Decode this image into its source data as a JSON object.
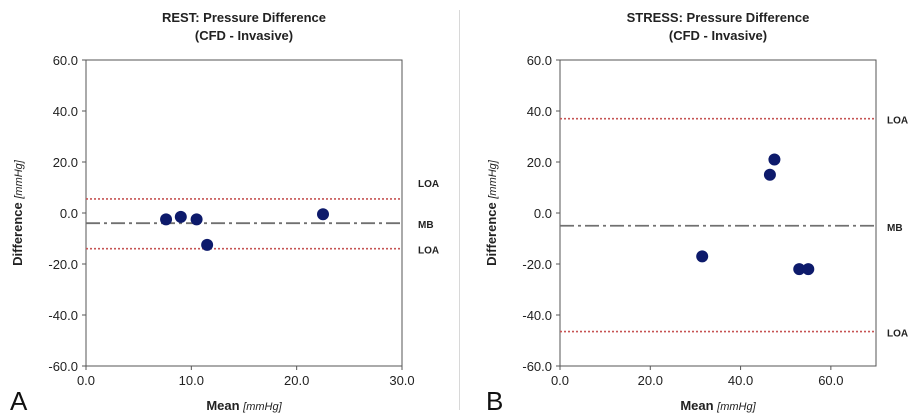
{
  "chart_data": [
    {
      "type": "scatter",
      "panel_letter": "A",
      "title_lines": [
        "REST: Pressure Difference",
        "(CFD - Invasive)"
      ],
      "xlabel": "Mean",
      "xlabel_unit": "[mmHg]",
      "ylabel": "Difference",
      "ylabel_unit": "[mmHg]",
      "xlim": [
        0,
        30
      ],
      "ylim": [
        -60,
        60
      ],
      "xticks": [
        0,
        10,
        20,
        30
      ],
      "xtick_labels": [
        "0.0",
        "10.0",
        "20.0",
        "30.0"
      ],
      "yticks": [
        60,
        40,
        20,
        0,
        -20,
        -40,
        -60
      ],
      "ytick_labels": [
        "60.0",
        "40.0",
        "20.0",
        "0.0",
        "-20.0",
        "-40.0",
        "-60.0"
      ],
      "points": [
        {
          "x": 7.6,
          "y": -2.5
        },
        {
          "x": 9.0,
          "y": -1.5
        },
        {
          "x": 10.5,
          "y": -2.5
        },
        {
          "x": 11.5,
          "y": -12.5
        },
        {
          "x": 22.5,
          "y": -0.5
        }
      ],
      "lines": [
        {
          "label": "LOA",
          "y": 5.5,
          "style": "dotted"
        },
        {
          "label": "MB",
          "y": -4.0,
          "style": "dashdot"
        },
        {
          "label": "LOA",
          "y": -14.0,
          "style": "dotted"
        }
      ],
      "colors": {
        "points": "#0d1a6b",
        "loa": "#c65454",
        "mb": "#707070"
      }
    },
    {
      "type": "scatter",
      "panel_letter": "B",
      "title_lines": [
        "STRESS: Pressure Difference",
        "(CFD - Invasive)"
      ],
      "xlabel": "Mean",
      "xlabel_unit": "[mmHg]",
      "ylabel": "Difference",
      "ylabel_unit": "[mmHg]",
      "xlim": [
        0,
        70
      ],
      "ylim": [
        -60,
        60
      ],
      "xticks": [
        0,
        20,
        40,
        60
      ],
      "xtick_labels": [
        "0.0",
        "20.0",
        "40.0",
        "60.0"
      ],
      "yticks": [
        60,
        40,
        20,
        0,
        -20,
        -40,
        -60
      ],
      "ytick_labels": [
        "60.0",
        "40.0",
        "20.0",
        "0.0",
        "-20.0",
        "-40.0",
        "-60.0"
      ],
      "points": [
        {
          "x": 31.5,
          "y": -17.0
        },
        {
          "x": 46.5,
          "y": 15.0
        },
        {
          "x": 47.5,
          "y": 21.0
        },
        {
          "x": 53.0,
          "y": -22.0
        },
        {
          "x": 55.0,
          "y": -22.0
        }
      ],
      "lines": [
        {
          "label": "LOA",
          "y": 37.0,
          "style": "dotted"
        },
        {
          "label": "MB",
          "y": -5.0,
          "style": "dashdot"
        },
        {
          "label": "LOA",
          "y": -46.5,
          "style": "dotted"
        }
      ],
      "colors": {
        "points": "#0d1a6b",
        "loa": "#c65454",
        "mb": "#707070"
      }
    }
  ]
}
